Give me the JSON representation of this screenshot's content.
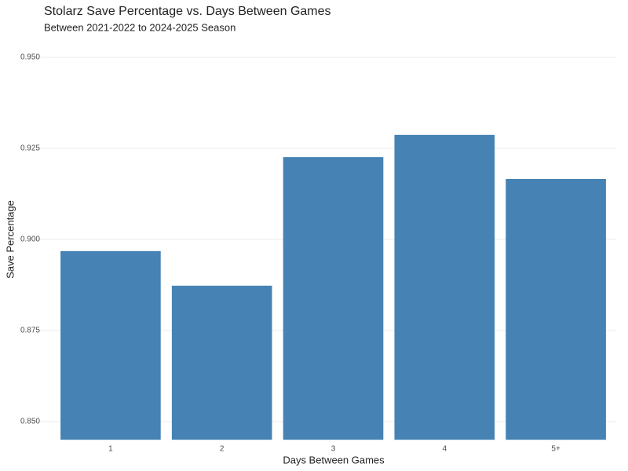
{
  "chart_data": {
    "type": "bar",
    "title": "Stolarz Save Percentage vs. Days Between Games",
    "subtitle": "Between 2021-2022 to 2024-2025 Season",
    "x_label": "Days Between Games",
    "y_label": "Save Percentage",
    "categories": [
      "1",
      "2",
      "3",
      "4",
      "5+"
    ],
    "values": [
      0.8968,
      0.8873,
      0.9226,
      0.9287,
      0.9166
    ],
    "color": "#4682b4",
    "ylim": [
      0.845,
      0.955
    ],
    "yticks": [
      {
        "value": 0.85,
        "label": "0.850"
      },
      {
        "value": 0.875,
        "label": "0.875"
      },
      {
        "value": 0.9,
        "label": "0.900"
      },
      {
        "value": 0.925,
        "label": "0.925"
      },
      {
        "value": 0.95,
        "label": "0.950"
      }
    ],
    "grid": true
  }
}
